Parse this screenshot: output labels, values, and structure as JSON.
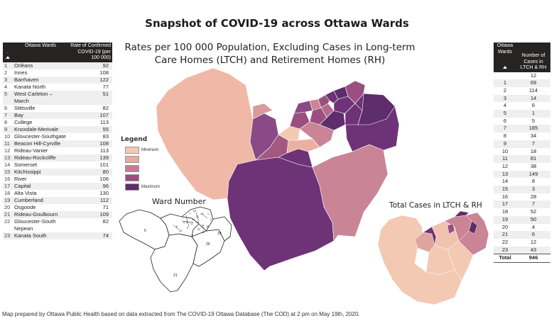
{
  "title": "Snapshot of COVID-19 across Ottawa Wards",
  "subtitle": "Rates per 100 000 Population, Excluding Cases in Long-term Care Homes (LTCH) and Retirement Homes (RH)",
  "left_table": {
    "headers": [
      ".",
      "Ottawa Wards",
      "Rate of Confirmed COVID-19 (per 100 000)"
    ],
    "rows": [
      {
        "idx": "1",
        "ward": "Orléans",
        "rate": "92"
      },
      {
        "idx": "2",
        "ward": "Innes",
        "rate": "108"
      },
      {
        "idx": "3",
        "ward": "Barrhaven",
        "rate": "122"
      },
      {
        "idx": "4",
        "ward": "Kanata North",
        "rate": "77"
      },
      {
        "idx": "5",
        "ward": "West Carleton – March",
        "rate": "51"
      },
      {
        "idx": "6",
        "ward": "Stittsville",
        "rate": "82"
      },
      {
        "idx": "7",
        "ward": "Bay",
        "rate": "107"
      },
      {
        "idx": "8",
        "ward": "College",
        "rate": "113"
      },
      {
        "idx": "9",
        "ward": "Knoxdale-Merivale",
        "rate": "55"
      },
      {
        "idx": "10",
        "ward": "Gloucester-Southgate",
        "rate": "83"
      },
      {
        "idx": "11",
        "ward": "Beacon Hill-Cyrville",
        "rate": "108"
      },
      {
        "idx": "12",
        "ward": "Rideau-Vanier",
        "rate": "113"
      },
      {
        "idx": "13",
        "ward": "Rideau-Rockcliffe",
        "rate": "139"
      },
      {
        "idx": "14",
        "ward": "Somerset",
        "rate": "101"
      },
      {
        "idx": "15",
        "ward": "Kitchissippi",
        "rate": "80"
      },
      {
        "idx": "16",
        "ward": "River",
        "rate": "106"
      },
      {
        "idx": "17",
        "ward": "Capital",
        "rate": "96"
      },
      {
        "idx": "18",
        "ward": "Alta Vista",
        "rate": "130"
      },
      {
        "idx": "19",
        "ward": "Cumberland",
        "rate": "112"
      },
      {
        "idx": "20",
        "ward": "Osgoode",
        "rate": "71"
      },
      {
        "idx": "21",
        "ward": "Rideau-Goulbourn",
        "rate": "109"
      },
      {
        "idx": "22",
        "ward": "Gloucester-South Nepean",
        "rate": "82"
      },
      {
        "idx": "23",
        "ward": "Kanata South",
        "rate": "74"
      }
    ]
  },
  "right_table": {
    "headers": [
      "Ottawa Wards",
      "Number of Cases in LTCH & RH"
    ],
    "rows": [
      {
        "ward": "",
        "cases": "12"
      },
      {
        "ward": "1",
        "cases": "69"
      },
      {
        "ward": "2",
        "cases": "114"
      },
      {
        "ward": "3",
        "cases": "14"
      },
      {
        "ward": "4",
        "cases": "6"
      },
      {
        "ward": "5",
        "cases": "1"
      },
      {
        "ward": "6",
        "cases": "5"
      },
      {
        "ward": "7",
        "cases": "185"
      },
      {
        "ward": "8",
        "cases": "34"
      },
      {
        "ward": "9",
        "cases": "7"
      },
      {
        "ward": "10",
        "cases": "18"
      },
      {
        "ward": "11",
        "cases": "81"
      },
      {
        "ward": "12",
        "cases": "38"
      },
      {
        "ward": "13",
        "cases": "149"
      },
      {
        "ward": "14",
        "cases": "8"
      },
      {
        "ward": "15",
        "cases": "3"
      },
      {
        "ward": "16",
        "cases": "28"
      },
      {
        "ward": "17",
        "cases": "7"
      },
      {
        "ward": "18",
        "cases": "52"
      },
      {
        "ward": "19",
        "cases": "50"
      },
      {
        "ward": "20",
        "cases": "4"
      },
      {
        "ward": "21",
        "cases": "6"
      },
      {
        "ward": "22",
        "cases": "12"
      },
      {
        "ward": "23",
        "cases": "43"
      }
    ],
    "total_label": "Total",
    "total_value": "946"
  },
  "legend": {
    "title": "Legend",
    "items": [
      {
        "label": "Minimum",
        "color": "#f3c9b3"
      },
      {
        "label": "",
        "color": "#e8a9a1"
      },
      {
        "label": "",
        "color": "#c77c94"
      },
      {
        "label": "",
        "color": "#9a4f80"
      },
      {
        "label": "Maximum",
        "color": "#5e2d6b"
      }
    ]
  },
  "ward_number_label": "Ward Number",
  "ward_numbers": [
    "5",
    "19",
    "20",
    "21",
    "6",
    "4",
    "23",
    "9",
    "3",
    "22",
    "10",
    "11",
    "1",
    "2",
    "12",
    "13",
    "14",
    "16",
    "17",
    "18",
    "8",
    "7",
    "15"
  ],
  "ltch_label": "Total Cases in LTCH & RH",
  "footer": "Map prepared by Ottawa Public Health based on data extracted from The COVID-19 Ottawa Database (The COD) at 2 pm on May 19th, 2020."
}
